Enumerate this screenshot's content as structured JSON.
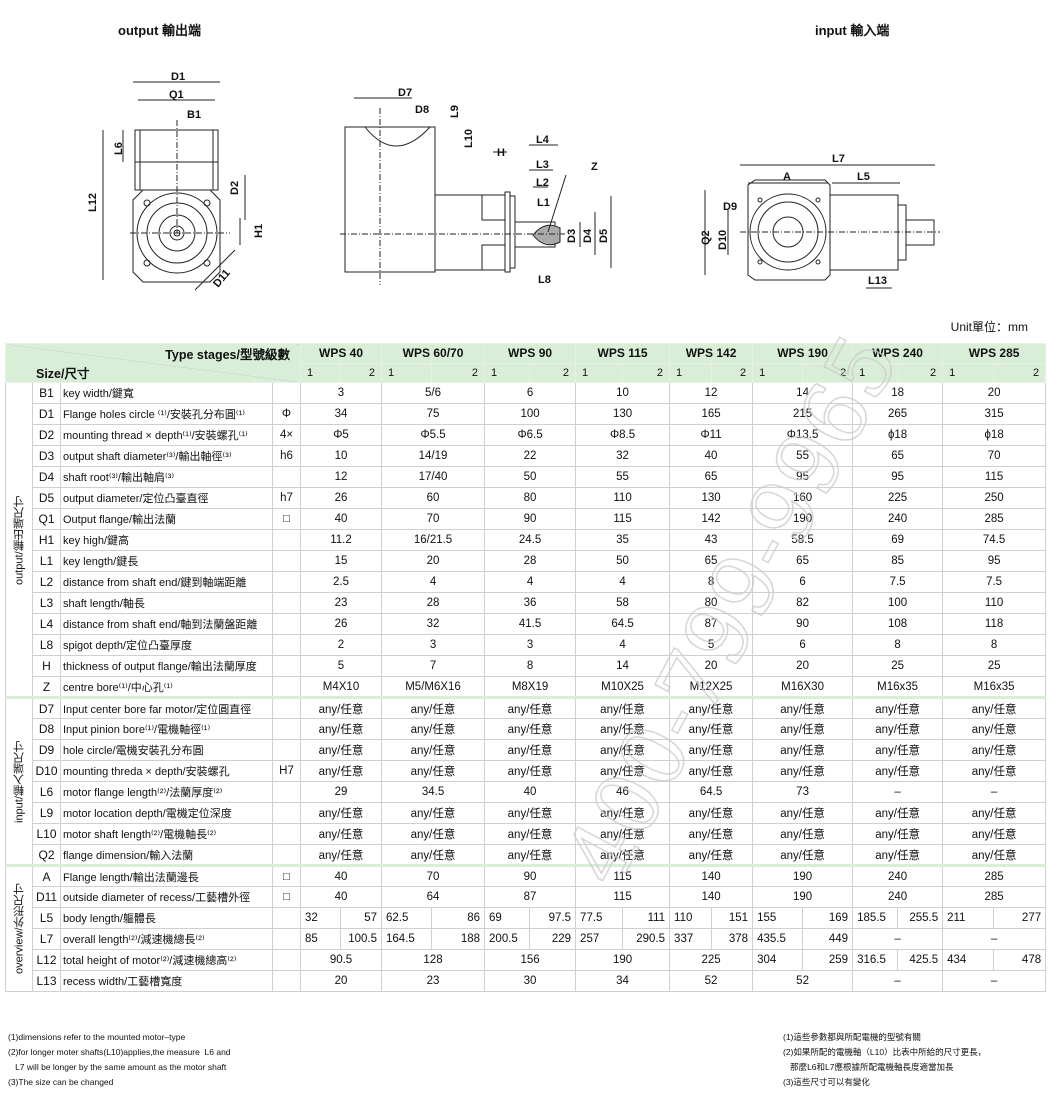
{
  "titles": {
    "output": "output 輸出端",
    "input": "input 輸入端",
    "unit": "Unit單位：mm"
  },
  "drawing_labels": {
    "output_view": [
      "D1",
      "Q1",
      "B1",
      "L6",
      "L12",
      "D2",
      "H1",
      "D11"
    ],
    "side_view": [
      "D7",
      "D8",
      "L9",
      "L10",
      "H",
      "L4",
      "L3",
      "L2",
      "L1",
      "Z",
      "D3",
      "D4",
      "D5",
      "L8"
    ],
    "input_view": [
      "L7",
      "A",
      "L5",
      "D9",
      "Q2",
      "D10",
      "L13"
    ]
  },
  "table": {
    "header": {
      "type_stages": "Type stages/型號級數",
      "size": "Size/尺寸",
      "models": [
        "WPS 40",
        "WPS 60/70",
        "WPS 90",
        "WPS 115",
        "WPS 142",
        "WPS 190",
        "WPS 240",
        "WPS 285"
      ],
      "stage1": "1",
      "stage2": "2"
    },
    "sections": [
      {
        "label": "output/輸出端尺寸",
        "rows": [
          {
            "code": "B1",
            "desc": "key width/鍵寬",
            "unit": "",
            "values": [
              "3",
              "5/6",
              "6",
              "10",
              "12",
              "14",
              "18",
              "20"
            ]
          },
          {
            "code": "D1",
            "desc": "Flange holes circle ⁽¹⁾/安裝孔分布圓⁽¹⁾",
            "unit": "Φ",
            "values": [
              "34",
              "75",
              "100",
              "130",
              "165",
              "215",
              "265",
              "315"
            ]
          },
          {
            "code": "D2",
            "desc": "mounting thread × depth⁽¹⁾/安裝螺孔⁽¹⁾",
            "unit": "4×",
            "values": [
              "Φ5",
              "Φ5.5",
              "Φ6.5",
              "Φ8.5",
              "Φ11",
              "Φ13.5",
              "ϕ18",
              "ϕ18"
            ]
          },
          {
            "code": "D3",
            "desc": "output shaft diameter⁽³⁾/輸出軸徑⁽³⁾",
            "unit": "h6",
            "values": [
              "10",
              "14/19",
              "22",
              "32",
              "40",
              "55",
              "65",
              "70"
            ]
          },
          {
            "code": "D4",
            "desc": "shaft root⁽³⁾/輸出軸肩⁽³⁾",
            "unit": "",
            "values": [
              "12",
              "17/40",
              "50",
              "55",
              "65",
              "95",
              "95",
              "115"
            ]
          },
          {
            "code": "D5",
            "desc": "output diameter/定位凸臺直徑",
            "unit": "h7",
            "values": [
              "26",
              "60",
              "80",
              "110",
              "130",
              "160",
              "225",
              "250"
            ]
          },
          {
            "code": "Q1",
            "desc": "Output flange/輸出法蘭",
            "unit": "□",
            "values": [
              "40",
              "70",
              "90",
              "115",
              "142",
              "190",
              "240",
              "285"
            ]
          },
          {
            "code": "H1",
            "desc": "key high/鍵高",
            "unit": "",
            "values": [
              "11.2",
              "16/21.5",
              "24.5",
              "35",
              "43",
              "58.5",
              "69",
              "74.5"
            ]
          },
          {
            "code": "L1",
            "desc": "key length/鍵長",
            "unit": "",
            "values": [
              "15",
              "20",
              "28",
              "50",
              "65",
              "65",
              "85",
              "95"
            ]
          },
          {
            "code": "L2",
            "desc": "distance from shaft end/鍵到軸端距離",
            "unit": "",
            "values": [
              "2.5",
              "4",
              "4",
              "4",
              "8",
              "6",
              "7.5",
              "7.5"
            ]
          },
          {
            "code": "L3",
            "desc": "shaft length/軸長",
            "unit": "",
            "values": [
              "23",
              "28",
              "36",
              "58",
              "80",
              "82",
              "100",
              "110"
            ]
          },
          {
            "code": "L4",
            "desc": "distance from shaft end/軸到法蘭盤距離",
            "unit": "",
            "values": [
              "26",
              "32",
              "41.5",
              "64.5",
              "87",
              "90",
              "108",
              "118"
            ]
          },
          {
            "code": "L8",
            "desc": "spigot depth/定位凸臺厚度",
            "unit": "",
            "values": [
              "2",
              "3",
              "3",
              "4",
              "5",
              "6",
              "8",
              "8"
            ]
          },
          {
            "code": "H",
            "desc": "thickness of output flange/輸出法蘭厚度",
            "unit": "",
            "values": [
              "5",
              "7",
              "8",
              "14",
              "20",
              "20",
              "25",
              "25"
            ]
          },
          {
            "code": "Z",
            "desc": "centre bore⁽¹⁾/中心孔⁽¹⁾",
            "unit": "",
            "values": [
              "M4X10",
              "M5/M6X16",
              "M8X19",
              "M10X25",
              "M12X25",
              "M16X30",
              "M16x35",
              "M16x35"
            ]
          }
        ]
      },
      {
        "label": "input/輸入端尺寸",
        "rows": [
          {
            "code": "D7",
            "desc": "Input center bore far motor/定位圓直徑",
            "unit": "",
            "values": [
              "any/任意",
              "any/任意",
              "any/任意",
              "any/任意",
              "any/任意",
              "any/任意",
              "any/任意",
              "any/任意"
            ]
          },
          {
            "code": "D8",
            "desc": "Input pinion bore⁽¹⁾/電機軸徑⁽¹⁾",
            "unit": "",
            "values": [
              "any/任意",
              "any/任意",
              "any/任意",
              "any/任意",
              "any/任意",
              "any/任意",
              "any/任意",
              "any/任意"
            ]
          },
          {
            "code": "D9",
            "desc": "hole circle/電機安裝孔分布圓",
            "unit": "",
            "values": [
              "any/任意",
              "any/任意",
              "any/任意",
              "any/任意",
              "any/任意",
              "any/任意",
              "any/任意",
              "any/任意"
            ]
          },
          {
            "code": "D10",
            "desc": "mounting threda × depth/安裝螺孔",
            "unit": "H7",
            "values": [
              "any/任意",
              "any/任意",
              "any/任意",
              "any/任意",
              "any/任意",
              "any/任意",
              "any/任意",
              "any/任意"
            ]
          },
          {
            "code": "L6",
            "desc": "motor flange length⁽²⁾/法蘭厚度⁽²⁾",
            "unit": "",
            "values": [
              "29",
              "34.5",
              "40",
              "46",
              "64.5",
              "73",
              "–",
              "–"
            ]
          },
          {
            "code": "L9",
            "desc": "motor location depth/電機定位深度",
            "unit": "",
            "values": [
              "any/任意",
              "any/任意",
              "any/任意",
              "any/任意",
              "any/任意",
              "any/任意",
              "any/任意",
              "any/任意"
            ]
          },
          {
            "code": "L10",
            "desc": "motor shaft length⁽²⁾/電機軸長⁽²⁾",
            "unit": "",
            "values": [
              "any/任意",
              "any/任意",
              "any/任意",
              "any/任意",
              "any/任意",
              "any/任意",
              "any/任意",
              "any/任意"
            ]
          },
          {
            "code": "Q2",
            "desc": "flange dimension/輸入法蘭",
            "unit": "",
            "values": [
              "any/任意",
              "any/任意",
              "any/任意",
              "any/任意",
              "any/任意",
              "any/任意",
              "any/任意",
              "any/任意"
            ]
          }
        ]
      },
      {
        "label": "overview/外形尺寸",
        "rows": [
          {
            "code": "A",
            "desc": "Flange length/輸出法蘭邊長",
            "unit": "□",
            "values": [
              "40",
              "70",
              "90",
              "115",
              "140",
              "190",
              "240",
              "285"
            ]
          },
          {
            "code": "D11",
            "desc": "outside diameter of recess/工藝槽外徑",
            "unit": "□",
            "values": [
              "40",
              "64",
              "87",
              "115",
              "140",
              "190",
              "240",
              "285"
            ]
          },
          {
            "code": "L5",
            "desc": "body length/軀體長",
            "unit": "",
            "values": [
              [
                "32",
                "57"
              ],
              [
                "62.5",
                "86"
              ],
              [
                "69",
                "97.5"
              ],
              [
                "77.5",
                "111"
              ],
              [
                "110",
                "151"
              ],
              [
                "155",
                "169"
              ],
              [
                "185.5",
                "255.5"
              ],
              [
                "211",
                "277"
              ]
            ]
          },
          {
            "code": "L7",
            "desc": "overall length⁽²⁾/減速機總長⁽²⁾",
            "unit": "",
            "values": [
              [
                "85",
                "100.5"
              ],
              [
                "164.5",
                "188"
              ],
              [
                "200.5",
                "229"
              ],
              [
                "257",
                "290.5"
              ],
              [
                "337",
                "378"
              ],
              [
                "435.5",
                "449"
              ],
              "–",
              "–"
            ]
          },
          {
            "code": "L12",
            "desc": "total height of motor⁽²⁾/減速機總高⁽²⁾",
            "unit": "",
            "values": [
              "90.5",
              "128",
              "156",
              "190",
              "225",
              [
                "304",
                "259"
              ],
              [
                "316.5",
                "425.5"
              ],
              [
                "434",
                "478"
              ]
            ]
          },
          {
            "code": "L13",
            "desc": "recess width/工藝槽寬度",
            "unit": "",
            "values": [
              "20",
              "23",
              "30",
              "34",
              "52",
              "52",
              "–",
              "–"
            ]
          }
        ]
      }
    ]
  },
  "footnotes": {
    "left": [
      "(1)dimensions refer to the mounted motor–type",
      "(2)for longer moter shafts(L10)applies,the measure  L6 and",
      "   L7 will be longer by the same amount as the motor shaft",
      "(3)The size can be changed"
    ],
    "right": [
      "(1)這些參數都與所配電機的型號有關",
      "(2)如果所配的電機軸（L10）比表中所給的尺寸更長，",
      "   那麼L6和L7應根據所配電機軸長度適當加長",
      "(3)這些尺寸可以有變化"
    ]
  },
  "watermark": "400-799-9965",
  "colors": {
    "header_bg": "#d9eed6",
    "grid": "#d0d0d0"
  }
}
